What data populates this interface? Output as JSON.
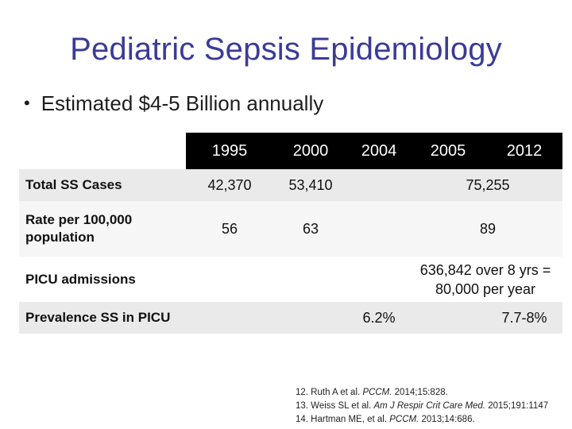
{
  "slide": {
    "title": "Pediatric Sepsis Epidemiology",
    "bullet": "Estimated $4-5 Billion annually"
  },
  "table": {
    "headers": [
      "1995",
      "2000",
      "2004",
      "2005",
      "2012"
    ],
    "rows": [
      {
        "label": "Total SS Cases",
        "y1995": "42,370",
        "y2000": "53,410",
        "y2005_2012": "75,255"
      },
      {
        "label": "Rate per 100,000 population",
        "y1995": "56",
        "y2000": "63",
        "y2005_2012": "89"
      },
      {
        "label": "PICU admissions",
        "y2004_2012": "636,842 over 8 yrs = 80,000 per year"
      },
      {
        "label": "Prevalence SS in PICU",
        "y2004": "6.2%",
        "y2012": "7.7-8%"
      }
    ]
  },
  "references": [
    {
      "pre": "12. Ruth A et al. ",
      "journal": "PCCM.",
      "post": " 2014;15:828."
    },
    {
      "pre": "13. Weiss SL et al. ",
      "journal": "Am J Respir Crit Care Med.",
      "post": " 2015;191:1147"
    },
    {
      "pre": "14. Hartman ME, et al. ",
      "journal": "PCCM.",
      "post": " 2013;14:686."
    }
  ]
}
